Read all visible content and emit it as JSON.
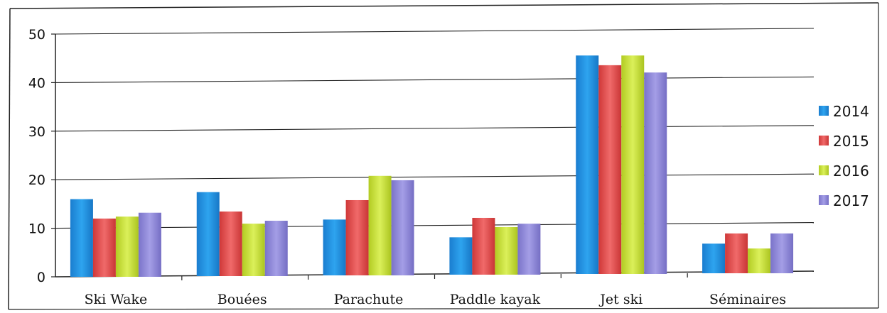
{
  "chart_data": {
    "type": "bar",
    "title": "",
    "xlabel": "",
    "ylabel": "",
    "categories": [
      "Ski Wake",
      "Bouées",
      "Parachute",
      "Paddle kayak",
      "Jet ski",
      "Séminaires"
    ],
    "series": [
      {
        "name": "2014",
        "color": "#1f8fdf",
        "values": [
          16,
          17.3,
          11.5,
          7.7,
          45,
          6.1
        ]
      },
      {
        "name": "2015",
        "color": "#e04a4a",
        "values": [
          12,
          13.3,
          15.5,
          11.7,
          43,
          8.2
        ]
      },
      {
        "name": "2016",
        "color": "#c4dc36",
        "values": [
          12.4,
          10.8,
          20.5,
          9.8,
          45,
          5.1
        ]
      },
      {
        "name": "2017",
        "color": "#8b84d8",
        "values": [
          13.2,
          11.4,
          19.6,
          10.5,
          41.5,
          8.2
        ]
      }
    ],
    "ylim": [
      0,
      50
    ],
    "yticks": [
      "0",
      "10",
      "20",
      "30",
      "40",
      "50"
    ],
    "grid": true,
    "legend_position": "right"
  }
}
